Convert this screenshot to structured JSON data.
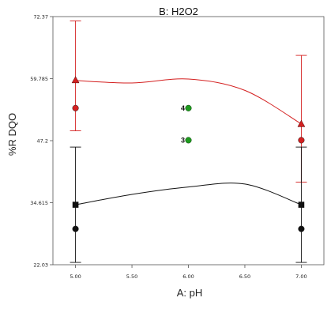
{
  "chart_data": {
    "type": "line",
    "title": "B: H2O2",
    "xlabel": "A: pH",
    "ylabel": "%R DQO",
    "xlim": [
      4.8,
      7.2
    ],
    "ylim": [
      22.03,
      72.37
    ],
    "x_ticks": [
      "5.00",
      "5.50",
      "6.00",
      "6.50",
      "7.00"
    ],
    "y_ticks": [
      "22.03",
      "34.615",
      "47.2",
      "59.785",
      "72.37"
    ],
    "grid": false,
    "colors": {
      "high": "#d42020",
      "low": "#111111",
      "center": "#1e9a1e"
    },
    "series": [
      {
        "curve": [
          [
            5.0,
            59.4
          ],
          [
            5.5,
            58.9
          ],
          [
            6.0,
            59.7
          ],
          [
            6.5,
            57.4
          ],
          [
            7.0,
            50.6
          ]
        ],
        "ci_upper": {
          "5.00": 71.5,
          "7.00": 64.5
        },
        "ci_lower": {
          "5.00": 49.2,
          "7.00": 38.8
        },
        "markers_triangle": [
          [
            5.0,
            59.5
          ],
          [
            7.0,
            50.6
          ]
        ],
        "markers_circle": [
          [
            5.0,
            53.8
          ],
          [
            7.0,
            47.3
          ]
        ]
      },
      {
        "curve": [
          [
            5.0,
            34.2
          ],
          [
            5.5,
            36.3
          ],
          [
            6.0,
            37.8
          ],
          [
            6.5,
            38.4
          ],
          [
            7.0,
            34.2
          ]
        ],
        "ci_upper": {
          "5.00": 45.9,
          "7.00": 45.9
        },
        "ci_lower": {
          "5.00": 22.5,
          "7.00": 22.5
        },
        "markers_square": [
          [
            5.0,
            34.2
          ],
          [
            7.0,
            34.2
          ]
        ],
        "markers_circle": [
          [
            5.0,
            29.3
          ],
          [
            7.0,
            29.3
          ]
        ]
      }
    ],
    "design_points": [
      {
        "x": 6.0,
        "y": 53.8,
        "label": "4"
      },
      {
        "x": 6.0,
        "y": 47.3,
        "label": "3"
      }
    ]
  }
}
